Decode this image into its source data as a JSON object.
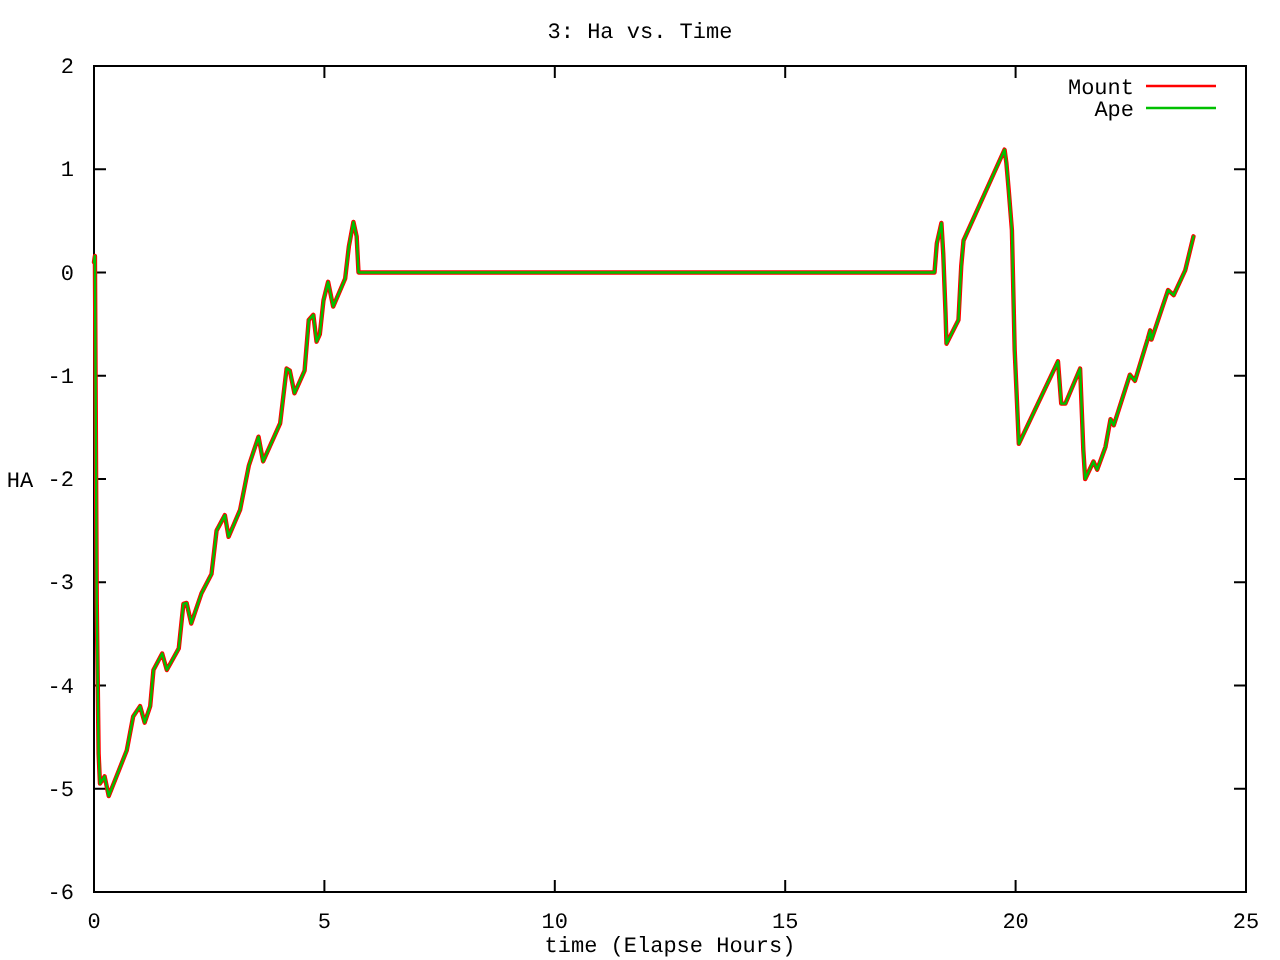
{
  "chart_data": {
    "type": "line",
    "title": "3: Ha vs. Time",
    "xlabel": "time (Elapse Hours)",
    "ylabel": "HA",
    "xlim": [
      0,
      25
    ],
    "xticks": [
      0,
      5,
      10,
      15,
      20,
      25
    ],
    "ylim": [
      -6,
      2
    ],
    "yticks": [
      -6,
      -5,
      -4,
      -3,
      -2,
      -1,
      0,
      1,
      2
    ],
    "legend": "top right",
    "grid": false,
    "marker": "none",
    "line_style": "solid",
    "x": [
      0,
      0.02,
      0.06,
      0.1,
      0.13,
      0.23,
      0.32,
      0.71,
      0.85,
      1.0,
      1.1,
      1.22,
      1.29,
      1.48,
      1.58,
      1.84,
      1.94,
      2.01,
      2.11,
      2.33,
      2.55,
      2.66,
      2.84,
      2.92,
      3.17,
      3.36,
      3.57,
      3.67,
      4.04,
      4.18,
      4.25,
      4.35,
      4.57,
      4.66,
      4.76,
      4.83,
      4.9,
      4.98,
      5.08,
      5.19,
      5.45,
      5.53,
      5.63,
      5.7,
      5.74,
      18.24,
      18.29,
      18.39,
      18.43,
      18.48,
      18.5,
      18.76,
      18.82,
      18.87,
      19.76,
      19.8,
      19.85,
      19.92,
      19.98,
      20.07,
      20.92,
      20.99,
      21.08,
      21.4,
      21.47,
      21.51,
      21.69,
      21.77,
      21.95,
      22.06,
      22.13,
      22.48,
      22.59,
      22.87,
      22.92,
      22.95,
      23.31,
      23.43,
      23.68,
      23.86
    ],
    "series": [
      {
        "name": "Mount",
        "color": "#ff0000",
        "values": [
          0.1,
          0.16,
          -3.21,
          -4.66,
          -4.95,
          -4.88,
          -5.07,
          -4.63,
          -4.3,
          -4.2,
          -4.36,
          -4.2,
          -3.85,
          -3.69,
          -3.85,
          -3.64,
          -3.21,
          -3.2,
          -3.4,
          -3.11,
          -2.92,
          -2.5,
          -2.35,
          -2.56,
          -2.3,
          -1.87,
          -1.59,
          -1.83,
          -1.46,
          -0.93,
          -0.95,
          -1.17,
          -0.95,
          -0.46,
          -0.41,
          -0.67,
          -0.6,
          -0.27,
          -0.09,
          -0.33,
          -0.06,
          0.25,
          0.49,
          0.35,
          0,
          0,
          0.28,
          0.48,
          0.18,
          -0.4,
          -0.69,
          -0.46,
          0.06,
          0.31,
          1.19,
          1.06,
          0.8,
          0.41,
          -0.75,
          -1.66,
          -0.86,
          -1.27,
          -1.27,
          -0.93,
          -1.72,
          -2.0,
          -1.83,
          -1.91,
          -1.69,
          -1.42,
          -1.48,
          -0.99,
          -1.05,
          -0.64,
          -0.56,
          -0.65,
          -0.17,
          -0.22,
          0.02,
          0.35
        ]
      },
      {
        "name": "Ape",
        "color": "#00c000",
        "values": [
          0.1,
          0.16,
          -3.21,
          -4.66,
          -4.95,
          -4.88,
          -5.07,
          -4.63,
          -4.3,
          -4.2,
          -4.36,
          -4.2,
          -3.85,
          -3.69,
          -3.85,
          -3.64,
          -3.21,
          -3.2,
          -3.4,
          -3.11,
          -2.92,
          -2.5,
          -2.35,
          -2.56,
          -2.3,
          -1.87,
          -1.59,
          -1.83,
          -1.46,
          -0.93,
          -0.95,
          -1.17,
          -0.95,
          -0.46,
          -0.41,
          -0.67,
          -0.6,
          -0.27,
          -0.09,
          -0.33,
          -0.06,
          0.25,
          0.49,
          0.35,
          0,
          0,
          0.28,
          0.48,
          0.18,
          -0.4,
          -0.69,
          -0.46,
          0.06,
          0.31,
          1.19,
          1.06,
          0.8,
          0.41,
          -0.75,
          -1.66,
          -0.86,
          -1.27,
          -1.27,
          -0.93,
          -1.72,
          -2.0,
          -1.83,
          -1.91,
          -1.69,
          -1.42,
          -1.48,
          -0.99,
          -1.05,
          -0.64,
          -0.56,
          -0.65,
          -0.17,
          -0.22,
          0.02,
          0.35
        ]
      }
    ]
  }
}
